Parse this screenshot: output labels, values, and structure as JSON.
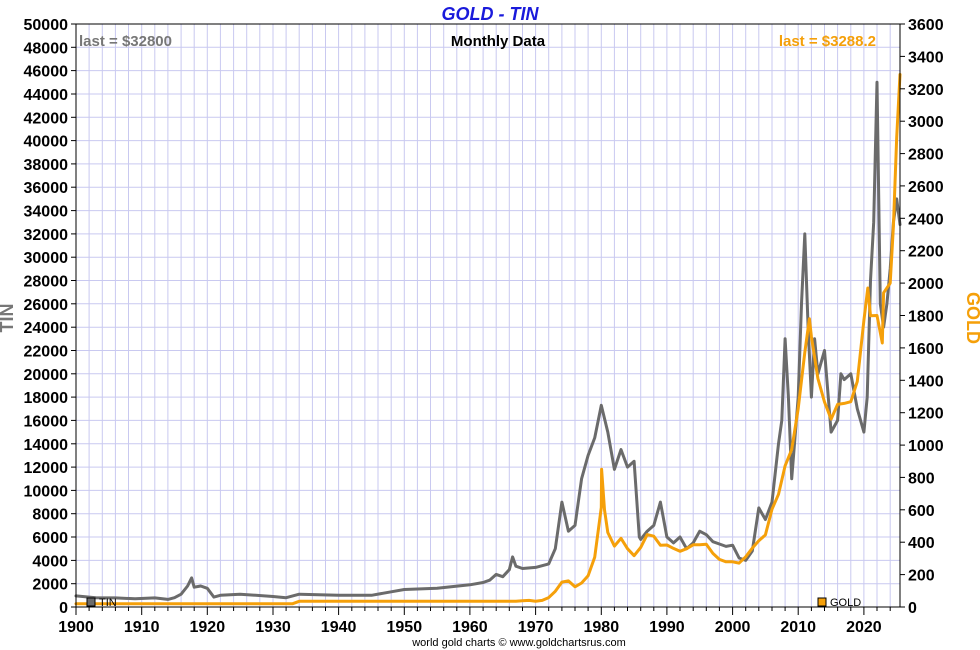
{
  "chart_data": {
    "type": "line",
    "title": "GOLD - TIN",
    "subtitle": "Monthly Data",
    "credit": "world gold charts © www.goldchartsrus.com",
    "grid": true,
    "x_axis": {
      "range": [
        1900,
        2025.5
      ],
      "ticks": [
        1900,
        1910,
        1920,
        1930,
        1940,
        1950,
        1960,
        1970,
        1980,
        1990,
        2000,
        2010,
        2020
      ]
    },
    "left_axis": {
      "label": "TIN",
      "color": "#777777",
      "range": [
        0,
        50000
      ],
      "ticks": [
        0,
        2000,
        4000,
        6000,
        8000,
        10000,
        12000,
        14000,
        16000,
        18000,
        20000,
        22000,
        24000,
        26000,
        28000,
        30000,
        32000,
        34000,
        36000,
        38000,
        40000,
        42000,
        44000,
        46000,
        48000,
        50000
      ]
    },
    "right_axis": {
      "label": "GOLD",
      "color": "#f5a00a",
      "range": [
        0,
        3600
      ],
      "ticks": [
        0,
        200,
        400,
        600,
        800,
        1000,
        1200,
        1400,
        1600,
        1800,
        2000,
        2200,
        2400,
        2600,
        2800,
        3000,
        3200,
        3400,
        3600
      ]
    },
    "series": [
      {
        "name": "TIN",
        "color": "#6b6b6b",
        "axis": "left",
        "last_label": "last = $32800",
        "legend_position": "bottom-left",
        "points": [
          [
            1900,
            950
          ],
          [
            1903,
            800
          ],
          [
            1906,
            780
          ],
          [
            1909,
            700
          ],
          [
            1912,
            780
          ],
          [
            1914,
            650
          ],
          [
            1915,
            800
          ],
          [
            1916,
            1100
          ],
          [
            1917,
            1800
          ],
          [
            1917.6,
            2500
          ],
          [
            1918,
            1700
          ],
          [
            1919,
            1800
          ],
          [
            1920,
            1600
          ],
          [
            1921,
            850
          ],
          [
            1922,
            1000
          ],
          [
            1925,
            1100
          ],
          [
            1930,
            900
          ],
          [
            1932,
            800
          ],
          [
            1934,
            1100
          ],
          [
            1940,
            1000
          ],
          [
            1945,
            1000
          ],
          [
            1948,
            1300
          ],
          [
            1950,
            1500
          ],
          [
            1955,
            1600
          ],
          [
            1960,
            1900
          ],
          [
            1962,
            2100
          ],
          [
            1963,
            2300
          ],
          [
            1964,
            2800
          ],
          [
            1965,
            2600
          ],
          [
            1966,
            3200
          ],
          [
            1966.5,
            4300
          ],
          [
            1967,
            3500
          ],
          [
            1968,
            3300
          ],
          [
            1970,
            3400
          ],
          [
            1972,
            3700
          ],
          [
            1973,
            5000
          ],
          [
            1974,
            9000
          ],
          [
            1975,
            6500
          ],
          [
            1976,
            7000
          ],
          [
            1977,
            11000
          ],
          [
            1978,
            13000
          ],
          [
            1979,
            14500
          ],
          [
            1980,
            17300
          ],
          [
            1981,
            15000
          ],
          [
            1982,
            11800
          ],
          [
            1983,
            13500
          ],
          [
            1984,
            12000
          ],
          [
            1985,
            12500
          ],
          [
            1985.8,
            6000
          ],
          [
            1986,
            5800
          ],
          [
            1987,
            6500
          ],
          [
            1988,
            7000
          ],
          [
            1989,
            9000
          ],
          [
            1990,
            6000
          ],
          [
            1991,
            5500
          ],
          [
            1992,
            6000
          ],
          [
            1993,
            5000
          ],
          [
            1994,
            5500
          ],
          [
            1995,
            6500
          ],
          [
            1996,
            6200
          ],
          [
            1997,
            5600
          ],
          [
            1998,
            5400
          ],
          [
            1999,
            5200
          ],
          [
            2000,
            5300
          ],
          [
            2001,
            4200
          ],
          [
            2002,
            4000
          ],
          [
            2003,
            4800
          ],
          [
            2004,
            8500
          ],
          [
            2005,
            7500
          ],
          [
            2006,
            9000
          ],
          [
            2007,
            14000
          ],
          [
            2007.5,
            16000
          ],
          [
            2008,
            23000
          ],
          [
            2008.5,
            18000
          ],
          [
            2009,
            11000
          ],
          [
            2010,
            18000
          ],
          [
            2010.5,
            26000
          ],
          [
            2011,
            32000
          ],
          [
            2011.5,
            24000
          ],
          [
            2012,
            18000
          ],
          [
            2012.5,
            23000
          ],
          [
            2013,
            20000
          ],
          [
            2014,
            22000
          ],
          [
            2015,
            15000
          ],
          [
            2016,
            16000
          ],
          [
            2016.5,
            20000
          ],
          [
            2017,
            19500
          ],
          [
            2018,
            20000
          ],
          [
            2019,
            17000
          ],
          [
            2020,
            15000
          ],
          [
            2020.5,
            18000
          ],
          [
            2021,
            28000
          ],
          [
            2021.5,
            33000
          ],
          [
            2022,
            45000
          ],
          [
            2022.5,
            26000
          ],
          [
            2023,
            24000
          ],
          [
            2023.5,
            26000
          ],
          [
            2024,
            29000
          ],
          [
            2024.5,
            33000
          ],
          [
            2025,
            35000
          ],
          [
            2025.5,
            32800
          ]
        ]
      },
      {
        "name": "GOLD",
        "color": "#f5a00a",
        "axis": "right",
        "last_label": "last = $3288.2",
        "legend_position": "bottom-right",
        "points": [
          [
            1900,
            20.67
          ],
          [
            1933,
            20.67
          ],
          [
            1934,
            35
          ],
          [
            1967,
            35
          ],
          [
            1968,
            39
          ],
          [
            1969,
            41
          ],
          [
            1970,
            36
          ],
          [
            1971,
            41
          ],
          [
            1972,
            58
          ],
          [
            1973,
            97
          ],
          [
            1974,
            154
          ],
          [
            1975,
            161
          ],
          [
            1976,
            125
          ],
          [
            1977,
            148
          ],
          [
            1978,
            193
          ],
          [
            1979,
            307
          ],
          [
            1980,
            615
          ],
          [
            1980.05,
            850
          ],
          [
            1980.5,
            600
          ],
          [
            1981,
            460
          ],
          [
            1982,
            376
          ],
          [
            1983,
            424
          ],
          [
            1984,
            360
          ],
          [
            1985,
            317
          ],
          [
            1986,
            368
          ],
          [
            1987,
            447
          ],
          [
            1988,
            437
          ],
          [
            1989,
            381
          ],
          [
            1990,
            383
          ],
          [
            1991,
            362
          ],
          [
            1992,
            344
          ],
          [
            1993,
            360
          ],
          [
            1994,
            384
          ],
          [
            1995,
            384
          ],
          [
            1996,
            388
          ],
          [
            1997,
            331
          ],
          [
            1998,
            294
          ],
          [
            1999,
            279
          ],
          [
            2000,
            279
          ],
          [
            2001,
            271
          ],
          [
            2002,
            310
          ],
          [
            2003,
            364
          ],
          [
            2004,
            409
          ],
          [
            2005,
            445
          ],
          [
            2006,
            604
          ],
          [
            2007,
            696
          ],
          [
            2008,
            872
          ],
          [
            2009,
            972
          ],
          [
            2010,
            1225
          ],
          [
            2011,
            1572
          ],
          [
            2011.7,
            1780
          ],
          [
            2012,
            1669
          ],
          [
            2013,
            1411
          ],
          [
            2014,
            1266
          ],
          [
            2015,
            1160
          ],
          [
            2016,
            1251
          ],
          [
            2017,
            1257
          ],
          [
            2018,
            1268
          ],
          [
            2019,
            1393
          ],
          [
            2020,
            1770
          ],
          [
            2020.6,
            1970
          ],
          [
            2021,
            1799
          ],
          [
            2022,
            1800
          ],
          [
            2022.8,
            1630
          ],
          [
            2023,
            1940
          ],
          [
            2024,
            2000
          ],
          [
            2024.5,
            2350
          ],
          [
            2025,
            2900
          ],
          [
            2025.5,
            3288.2
          ]
        ]
      }
    ]
  }
}
